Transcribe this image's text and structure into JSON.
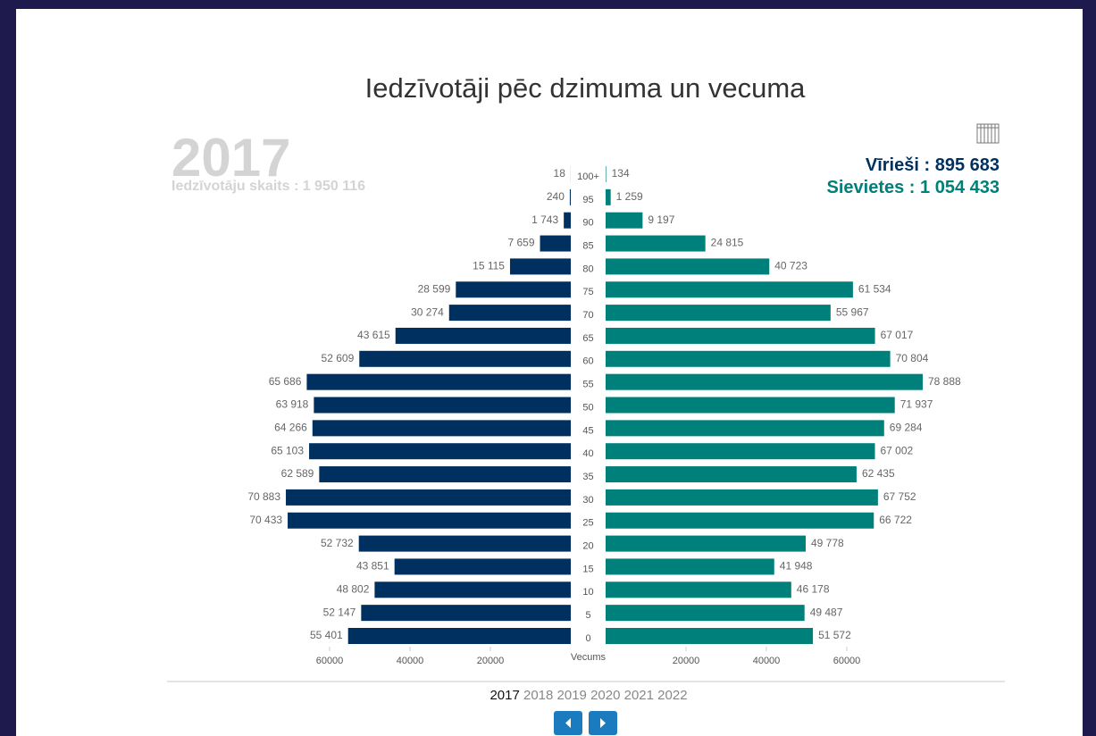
{
  "chart_data": {
    "type": "pyramid",
    "title": "Iedzīvotāji pēc dzimuma un vecuma",
    "year": "2017",
    "total_label": "Iedzīvotāju skaits : 1 950 116",
    "legend_separator": " : ",
    "x_axis_label": "Vecums",
    "categories": [
      "100+",
      "95",
      "90",
      "85",
      "80",
      "75",
      "70",
      "65",
      "60",
      "55",
      "50",
      "45",
      "40",
      "35",
      "30",
      "25",
      "20",
      "15",
      "10",
      "5",
      "0"
    ],
    "series": [
      {
        "name": "Vīrieši",
        "color": "#00305f",
        "total_label": "895 683",
        "values": [
          18,
          240,
          1743,
          7659,
          15115,
          28599,
          30274,
          43615,
          52609,
          65686,
          63918,
          64266,
          65103,
          62589,
          70883,
          70433,
          52732,
          43851,
          48802,
          52147,
          55401
        ],
        "value_labels": [
          "18",
          "240",
          "1 743",
          "7 659",
          "15 115",
          "28 599",
          "30 274",
          "43 615",
          "52 609",
          "65 686",
          "63 918",
          "64 266",
          "65 103",
          "62 589",
          "70 883",
          "70 433",
          "52 732",
          "43 851",
          "48 802",
          "52 147",
          "55 401"
        ]
      },
      {
        "name": "Sievietes",
        "color": "#00807a",
        "total_label": "1 054 433",
        "values": [
          134,
          1259,
          9197,
          24815,
          40723,
          61534,
          55967,
          67017,
          70804,
          78888,
          71937,
          69284,
          67002,
          62435,
          67752,
          66722,
          49778,
          41948,
          46178,
          49487,
          51572
        ],
        "value_labels": [
          "134",
          "1 259",
          "9 197",
          "24 815",
          "40 723",
          "61 534",
          "55 967",
          "67 017",
          "70 804",
          "78 888",
          "71 937",
          "69 284",
          "67 002",
          "62 435",
          "67 752",
          "66 722",
          "49 778",
          "41 948",
          "46 178",
          "49 487",
          "51 572"
        ]
      }
    ],
    "xlim": [
      0,
      80000
    ],
    "xticks": [
      20000,
      40000,
      60000
    ],
    "years": [
      "2017",
      "2018",
      "2019",
      "2020",
      "2021",
      "2022"
    ]
  }
}
